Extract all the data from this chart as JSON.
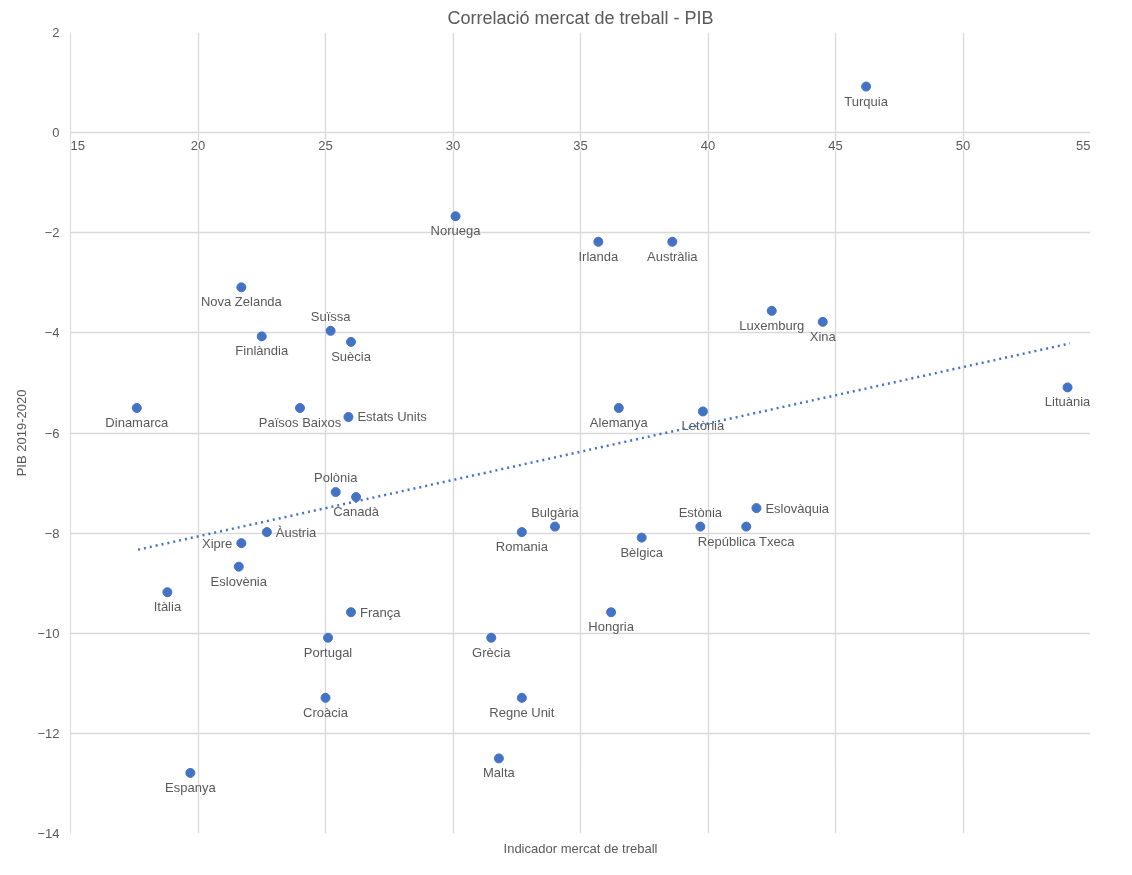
{
  "chart_data": {
    "type": "scatter",
    "title": "Correlació mercat de treball - PIB",
    "xlabel": "Indicador mercat de treball",
    "ylabel": "PIB 2019-2020",
    "xlim": [
      15,
      55
    ],
    "ylim": [
      -14,
      2
    ],
    "xticks": [
      15,
      20,
      25,
      30,
      35,
      40,
      45,
      50,
      55
    ],
    "yticks": [
      -14,
      -12,
      -10,
      -8,
      -6,
      -4,
      -2,
      0,
      2
    ],
    "grid": true,
    "marker": "circle",
    "series": [
      {
        "name": "Turquia",
        "color": "#4472c4",
        "x": [
          46.2
        ],
        "values": [
          0.92
        ]
      },
      {
        "name": "Noruega",
        "color": "#4472c4",
        "x": [
          30.1
        ],
        "values": [
          -1.67
        ]
      },
      {
        "name": "Irlanda",
        "color": "#4472c4",
        "x": [
          35.7
        ],
        "values": [
          -2.18
        ]
      },
      {
        "name": "Austràlia",
        "color": "#4472c4",
        "x": [
          38.6
        ],
        "values": [
          -2.18
        ]
      },
      {
        "name": "Nova Zelanda",
        "color": "#4472c4",
        "x": [
          21.7
        ],
        "values": [
          -3.09
        ]
      },
      {
        "name": "Suïssa",
        "color": "#4472c4",
        "x": [
          25.2
        ],
        "values": [
          -3.96
        ]
      },
      {
        "name": "Finlàndia",
        "color": "#4472c4",
        "x": [
          22.5
        ],
        "values": [
          -4.07
        ]
      },
      {
        "name": "Suècia",
        "color": "#4472c4",
        "x": [
          26.0
        ],
        "values": [
          -4.18
        ]
      },
      {
        "name": "Luxemburg",
        "color": "#4472c4",
        "x": [
          42.5
        ],
        "values": [
          -3.56
        ]
      },
      {
        "name": "Xina",
        "color": "#4472c4",
        "x": [
          44.5
        ],
        "values": [
          -3.78
        ]
      },
      {
        "name": "Dinamarca",
        "color": "#4472c4",
        "x": [
          17.6
        ],
        "values": [
          -5.5
        ]
      },
      {
        "name": "Països Baixos",
        "color": "#4472c4",
        "x": [
          24.0
        ],
        "values": [
          -5.5
        ]
      },
      {
        "name": "Estats Units",
        "color": "#4472c4",
        "x": [
          25.9
        ],
        "values": [
          -5.68
        ]
      },
      {
        "name": "Alemanya",
        "color": "#4472c4",
        "x": [
          36.5
        ],
        "values": [
          -5.5
        ]
      },
      {
        "name": "Letònia",
        "color": "#4472c4",
        "x": [
          39.8
        ],
        "values": [
          -5.57
        ]
      },
      {
        "name": "Lituània",
        "color": "#4472c4",
        "x": [
          54.1
        ],
        "values": [
          -5.09
        ]
      },
      {
        "name": "Polònia",
        "color": "#4472c4",
        "x": [
          25.4
        ],
        "values": [
          -7.18
        ]
      },
      {
        "name": "Canadà",
        "color": "#4472c4",
        "x": [
          26.2
        ],
        "values": [
          -7.28
        ]
      },
      {
        "name": "Bulgària",
        "color": "#4472c4",
        "x": [
          34.0
        ],
        "values": [
          -7.87
        ]
      },
      {
        "name": "Estònia",
        "color": "#4472c4",
        "x": [
          39.7
        ],
        "values": [
          -7.87
        ]
      },
      {
        "name": "Eslovàquia",
        "color": "#4472c4",
        "x": [
          41.9
        ],
        "values": [
          -7.5
        ]
      },
      {
        "name": "Xipre",
        "color": "#4472c4",
        "x": [
          21.7
        ],
        "values": [
          -8.2
        ]
      },
      {
        "name": "Àustria",
        "color": "#4472c4",
        "x": [
          22.7
        ],
        "values": [
          -7.98
        ]
      },
      {
        "name": "Romania",
        "color": "#4472c4",
        "x": [
          32.7
        ],
        "values": [
          -7.98
        ]
      },
      {
        "name": "Bèlgica",
        "color": "#4472c4",
        "x": [
          37.4
        ],
        "values": [
          -8.09
        ]
      },
      {
        "name": "República Txeca",
        "color": "#4472c4",
        "x": [
          41.5
        ],
        "values": [
          -7.87
        ]
      },
      {
        "name": "Eslovènia",
        "color": "#4472c4",
        "x": [
          21.6
        ],
        "values": [
          -8.67
        ]
      },
      {
        "name": "Itàlia",
        "color": "#4472c4",
        "x": [
          18.8
        ],
        "values": [
          -9.18
        ]
      },
      {
        "name": "França",
        "color": "#4472c4",
        "x": [
          26.0
        ],
        "values": [
          -9.58
        ]
      },
      {
        "name": "Hongria",
        "color": "#4472c4",
        "x": [
          36.2
        ],
        "values": [
          -9.58
        ]
      },
      {
        "name": "Portugal",
        "color": "#4472c4",
        "x": [
          25.1
        ],
        "values": [
          -10.09
        ]
      },
      {
        "name": "Grècia",
        "color": "#4472c4",
        "x": [
          31.5
        ],
        "values": [
          -10.09
        ]
      },
      {
        "name": "Croàcia",
        "color": "#4472c4",
        "x": [
          25.0
        ],
        "values": [
          -11.29
        ]
      },
      {
        "name": "Regne Unit",
        "color": "#4472c4",
        "x": [
          32.7
        ],
        "values": [
          -11.29
        ]
      },
      {
        "name": "Espanya",
        "color": "#4472c4",
        "x": [
          19.7
        ],
        "values": [
          -12.79
        ]
      },
      {
        "name": "Malta",
        "color": "#4472c4",
        "x": [
          31.8
        ],
        "values": [
          -12.5
        ]
      },
      {
        "type": "line",
        "line_style": "dotted",
        "marker": "none",
        "color": "#4472c4",
        "x": [
          17.65,
          54.2
        ],
        "values": [
          -8.33,
          -4.21
        ]
      }
    ]
  }
}
